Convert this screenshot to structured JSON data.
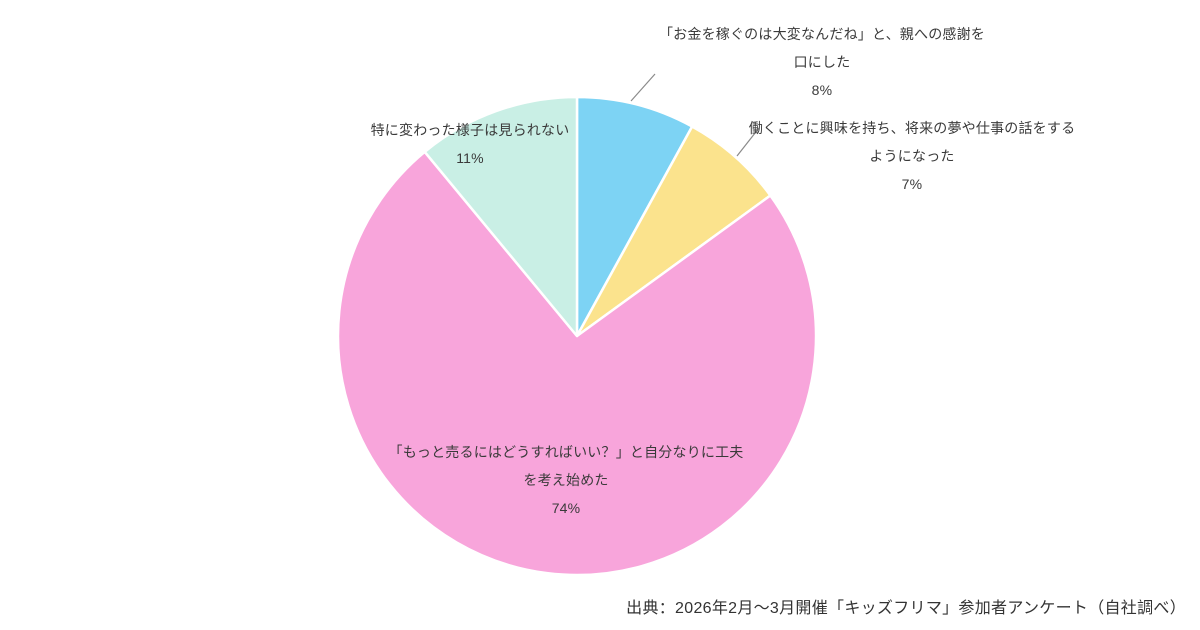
{
  "page": {
    "background_color": "#ffffff",
    "text_color": "#3a3a3a"
  },
  "footer": {
    "source_note": "出典：2026年2月〜3月開催「キッズフリマ」参加者アンケート（自社調べ）"
  },
  "chart_data": {
    "type": "pie",
    "start_angle_deg": 0,
    "direction": "clockwise",
    "stroke_color": "#ffffff",
    "slices": [
      {
        "label_lines": [
          "「お金を稼ぐのは大変なんだね」と、親への感謝を",
          "口にした"
        ],
        "pct_label": "8%",
        "value": 8,
        "color": "#7DD3F4"
      },
      {
        "label_lines": [
          "働くことに興味を持ち、将来の夢や仕事の話をする",
          "ようになった"
        ],
        "pct_label": "7%",
        "value": 7,
        "color": "#FBE38D"
      },
      {
        "label_lines": [
          "「もっと売るにはどうすればいい？」と自分なりに工夫",
          "を考え始めた"
        ],
        "pct_label": "74%",
        "value": 74,
        "color": "#F8A5DB"
      },
      {
        "label_lines": [
          "特に変わった様子は見られない"
        ],
        "pct_label": "11%",
        "value": 11,
        "color": "#C9EFE5"
      }
    ]
  }
}
